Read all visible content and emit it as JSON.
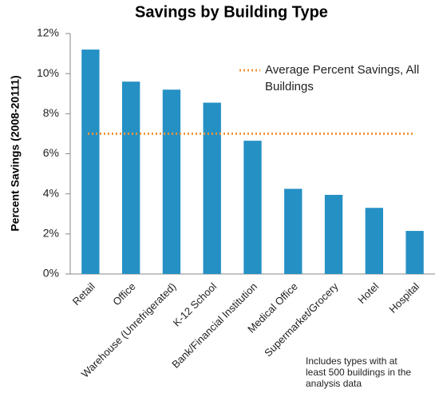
{
  "chart_data": {
    "type": "bar",
    "title": "Savings by Building Type",
    "y_label": "Percent Savings (2008-20111)",
    "categories": [
      "Retail",
      "Office",
      "Warehouse (Unrefrigerated)",
      "K-12 School",
      "Bank/Financial Institution",
      "Medical Office",
      "Supermarket/Grocery",
      "Hotel",
      "Hospital"
    ],
    "values": [
      11.2,
      9.6,
      9.2,
      8.55,
      6.65,
      4.25,
      3.95,
      3.3,
      2.15
    ],
    "color": "#2590c4",
    "ylim": [
      0,
      12
    ],
    "yticks": [
      {
        "value": 0,
        "label": "0%"
      },
      {
        "value": 2,
        "label": "2%"
      },
      {
        "value": 4,
        "label": "4%"
      },
      {
        "value": 6,
        "label": "6%"
      },
      {
        "value": 8,
        "label": "8%"
      },
      {
        "value": 10,
        "label": "10%"
      },
      {
        "value": 12,
        "label": "12%"
      }
    ],
    "reference_line": {
      "name": "Average Percent Savings, All Buildings",
      "value": 7,
      "color": "#f0953a"
    },
    "annotation": "Includes types with at least 500 buildings in the analysis data"
  }
}
